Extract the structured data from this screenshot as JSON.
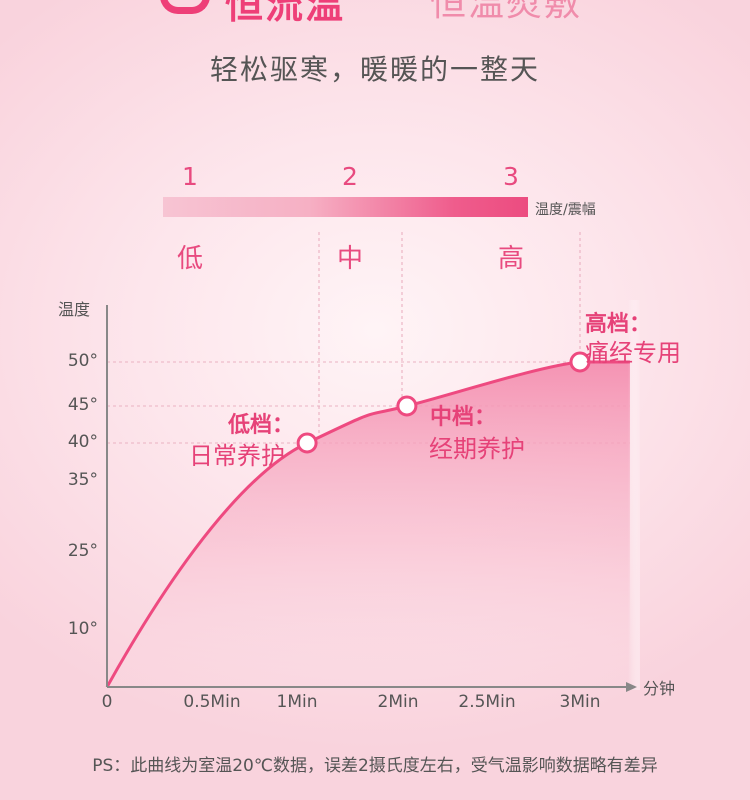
{
  "header": {
    "headline": "恒流温",
    "headline_suffix": "恒温熨敷",
    "subtitle": "轻松驱寒，暖暖的一整天"
  },
  "levels": {
    "numbers": [
      "1",
      "2",
      "3"
    ],
    "words": [
      "低",
      "中",
      "高"
    ],
    "bar_caption": "温度/震幅"
  },
  "chart_data": {
    "type": "area",
    "ylabel": "温度",
    "xlabel": "分钟",
    "y_ticks": [
      "50°",
      "45°",
      "40°",
      "35°",
      "25°",
      "10°"
    ],
    "y_tick_values": [
      50,
      45,
      40,
      35,
      25,
      10
    ],
    "x_ticks": [
      "0",
      "0.5Min",
      "1Min",
      "2Min",
      "2.5Min",
      "3Min"
    ],
    "x_tick_values": [
      0,
      0.5,
      1,
      2,
      2.5,
      3
    ],
    "points": [
      {
        "x": 1.1,
        "y": 40,
        "title": "低档：",
        "label": "日常养护"
      },
      {
        "x": 2.05,
        "y": 45,
        "title": "中档：",
        "label": "经期养护"
      },
      {
        "x": 3.0,
        "y": 50,
        "title": "高档：",
        "label": "痛经专用"
      }
    ],
    "grid": true,
    "colors": {
      "curve": "#ee4a80",
      "fill": "#f6a7c0",
      "axis": "#888888"
    }
  },
  "footnote": "PS：此曲线为室温20℃数据，误差2摄氏度左右，受气温影响数据略有差异"
}
